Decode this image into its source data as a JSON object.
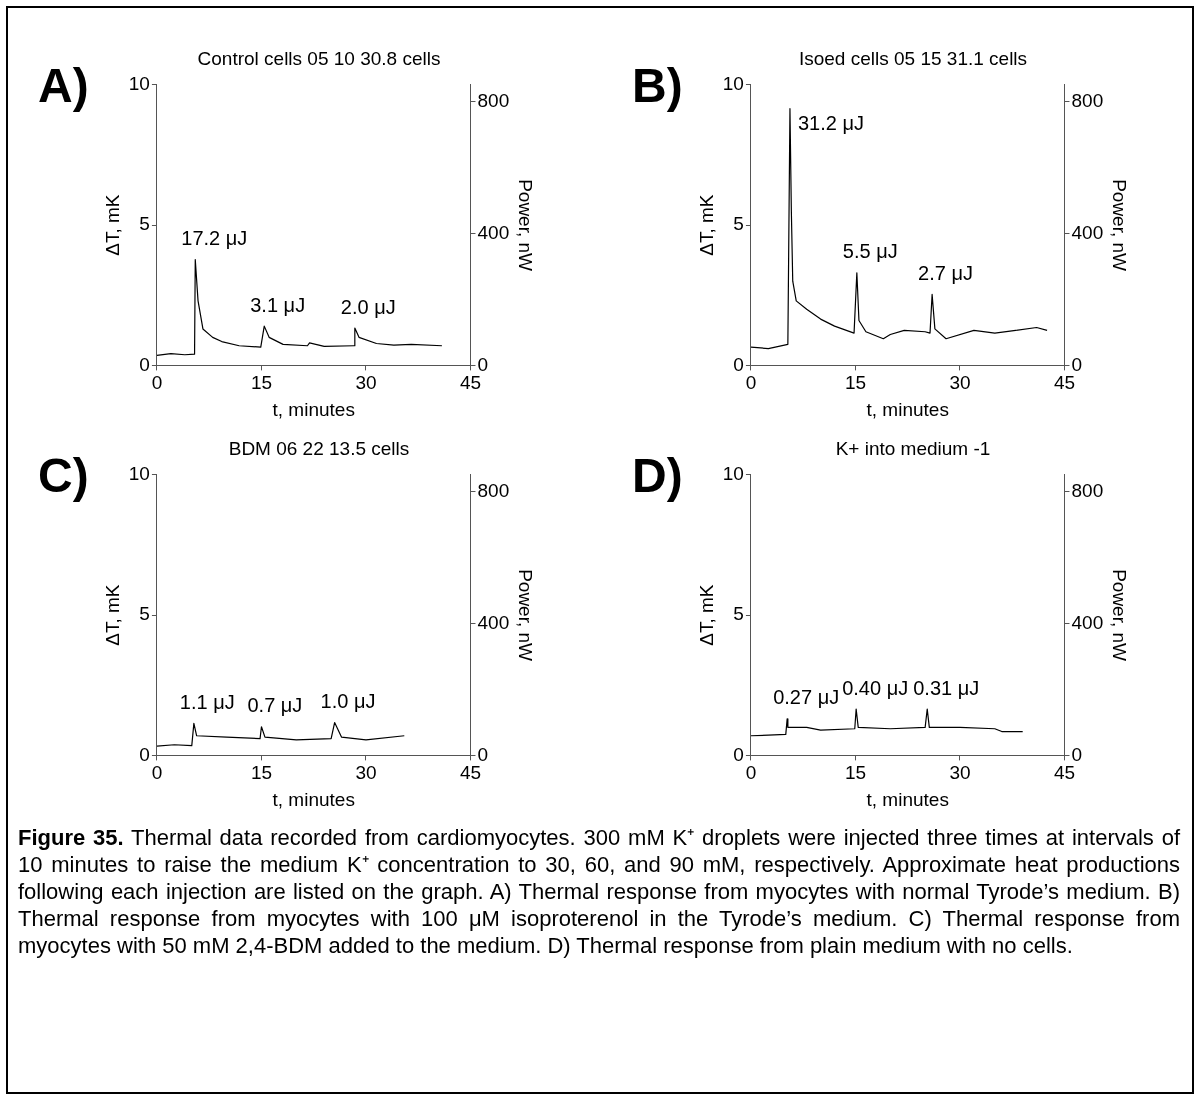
{
  "chart_data": [
    {
      "type": "line",
      "title": "Control cells 05 10 30.8 cells",
      "xlabel": "t, minutes",
      "ylabel": "ΔT, mK",
      "y2label": "Power, nW",
      "xlim": [
        0,
        45
      ],
      "xticks": [
        0,
        15,
        30,
        45
      ],
      "ylim": [
        0,
        10
      ],
      "yticks": [
        0,
        5,
        10
      ],
      "y2lim": [
        0,
        850
      ],
      "y2ticks": [
        0,
        400,
        800
      ],
      "grid": false,
      "series": [
        {
          "color": "#000000",
          "x": [
            0,
            2,
            4,
            5.4,
            5.5,
            5.9,
            6.6,
            8,
            9.3,
            11.8,
            14.9,
            15.4,
            16.1,
            18.1,
            21.6,
            21.9,
            24,
            28.3,
            28.4,
            29,
            31.5,
            34,
            36.5,
            40.9
          ],
          "values": [
            0.36,
            0.42,
            0.38,
            0.4,
            3.77,
            2.3,
            1.3,
            1.0,
            0.85,
            0.7,
            0.65,
            1.4,
            1.0,
            0.75,
            0.7,
            0.8,
            0.68,
            0.7,
            1.33,
            1.0,
            0.78,
            0.72,
            0.75,
            0.7
          ]
        }
      ],
      "annotations": [
        "A)",
        {
          "text": "17.2 μJ",
          "x": 5.5,
          "y": 3.77
        },
        {
          "text": "3.1 μJ",
          "x": 15.4,
          "y": 1.4
        },
        {
          "text": "2.0 μJ",
          "x": 28.4,
          "y": 1.33
        }
      ]
    },
    {
      "type": "line",
      "title": "Isoed cells 05 15 31.1 cells",
      "xlabel": "t, minutes",
      "ylabel": "ΔT, mK",
      "y2label": "Power, nW",
      "xlim": [
        0,
        45
      ],
      "xticks": [
        0,
        15,
        30,
        45
      ],
      "ylim": [
        0,
        10
      ],
      "yticks": [
        0,
        5,
        10
      ],
      "y2lim": [
        0,
        850
      ],
      "y2ticks": [
        0,
        400,
        800
      ],
      "grid": false,
      "series": [
        {
          "color": "#000000",
          "x": [
            0,
            2.5,
            5.3,
            5.6,
            5.8,
            6.0,
            6.5,
            8,
            10,
            12,
            14.8,
            15.2,
            15.5,
            16.5,
            19,
            20,
            22,
            25,
            25.7,
            26.0,
            26.4,
            28,
            32,
            35,
            38,
            41,
            42.5
          ],
          "values": [
            0.65,
            0.6,
            0.75,
            9.15,
            5.5,
            3.0,
            2.3,
            2.0,
            1.65,
            1.4,
            1.15,
            3.3,
            1.6,
            1.2,
            0.95,
            1.1,
            1.25,
            1.2,
            1.15,
            2.53,
            1.3,
            0.95,
            1.25,
            1.15,
            1.25,
            1.35,
            1.25
          ]
        }
      ],
      "annotations": [
        "B)",
        {
          "text": "31.2 μJ",
          "x": 5.6,
          "y": 9.15
        },
        {
          "text": "5.5 μJ",
          "x": 15.2,
          "y": 3.3
        },
        {
          "text": "2.7 μJ",
          "x": 26.0,
          "y": 2.53
        }
      ]
    },
    {
      "type": "line",
      "title": "BDM 06 22 13.5 cells",
      "xlabel": "t, minutes",
      "ylabel": "ΔT, mK",
      "y2label": "Power, nW",
      "xlim": [
        0,
        45
      ],
      "xticks": [
        0,
        15,
        30,
        45
      ],
      "ylim": [
        0,
        10
      ],
      "yticks": [
        0,
        5,
        10
      ],
      "y2lim": [
        0,
        850
      ],
      "y2ticks": [
        0,
        400,
        800
      ],
      "grid": false,
      "series": [
        {
          "color": "#000000",
          "x": [
            0,
            2.5,
            5.0,
            5.3,
            5.7,
            10,
            14.8,
            15.0,
            15.5,
            20,
            25,
            25.5,
            26.5,
            30,
            35.5
          ],
          "values": [
            0.33,
            0.38,
            0.35,
            1.14,
            0.7,
            0.65,
            0.6,
            1.02,
            0.65,
            0.55,
            0.6,
            1.17,
            0.65,
            0.55,
            0.7
          ]
        }
      ],
      "annotations": [
        "C)",
        {
          "text": "1.1 μJ",
          "x": 5.3,
          "y": 1.14
        },
        {
          "text": "0.7 μJ",
          "x": 15.0,
          "y": 1.02
        },
        {
          "text": "1.0 μJ",
          "x": 25.5,
          "y": 1.17
        }
      ]
    },
    {
      "type": "line",
      "title": "K+ into medium -1",
      "xlabel": "t, minutes",
      "ylabel": "ΔT, mK",
      "y2label": "Power, nW",
      "xlim": [
        0,
        45
      ],
      "xticks": [
        0,
        15,
        30,
        45
      ],
      "ylim": [
        0,
        10
      ],
      "yticks": [
        0,
        5,
        10
      ],
      "y2lim": [
        0,
        850
      ],
      "y2ticks": [
        0,
        400,
        800
      ],
      "grid": false,
      "series": [
        {
          "color": "#000000",
          "x": [
            0,
            2.5,
            5.0,
            5.2,
            5.3,
            8,
            10,
            14.9,
            15.1,
            15.4,
            20,
            25,
            25.3,
            25.6,
            30,
            35,
            36,
            39
          ],
          "values": [
            0.7,
            0.72,
            0.75,
            1.3,
            1.0,
            1.0,
            0.9,
            0.95,
            1.65,
            1.0,
            0.95,
            1.0,
            1.65,
            1.0,
            1.0,
            0.95,
            0.85,
            0.85
          ]
        }
      ],
      "annotations": [
        "D)",
        {
          "text": "0.27 μJ",
          "x": 5.2,
          "y": 1.3
        },
        {
          "text": "0.40 μJ",
          "x": 15.1,
          "y": 1.65
        },
        {
          "text": "0.31 μJ",
          "x": 25.3,
          "y": 1.65
        }
      ]
    },
    {
      "type": "other",
      "title": "Figure 35.",
      "annotations": [
        "Thermal data recorded from cardiomyocytes. 300 mM K⁺ droplets were injected three times at intervals of 10 minutes to raise the medium K⁺ concentration to 30, 60, and 90 mM, respectively. Approximate heat productions following each injection are listed on the graph. A) Thermal response from myocytes with normal Tyrode’s medium. B) Thermal response from myocytes with 100 μM isoproterenol in the Tyrode’s medium. C) Thermal response from myocytes with 50 mM 2,4-BDM added to the medium. D) Thermal response from plain medium with no cells."
      ]
    }
  ]
}
